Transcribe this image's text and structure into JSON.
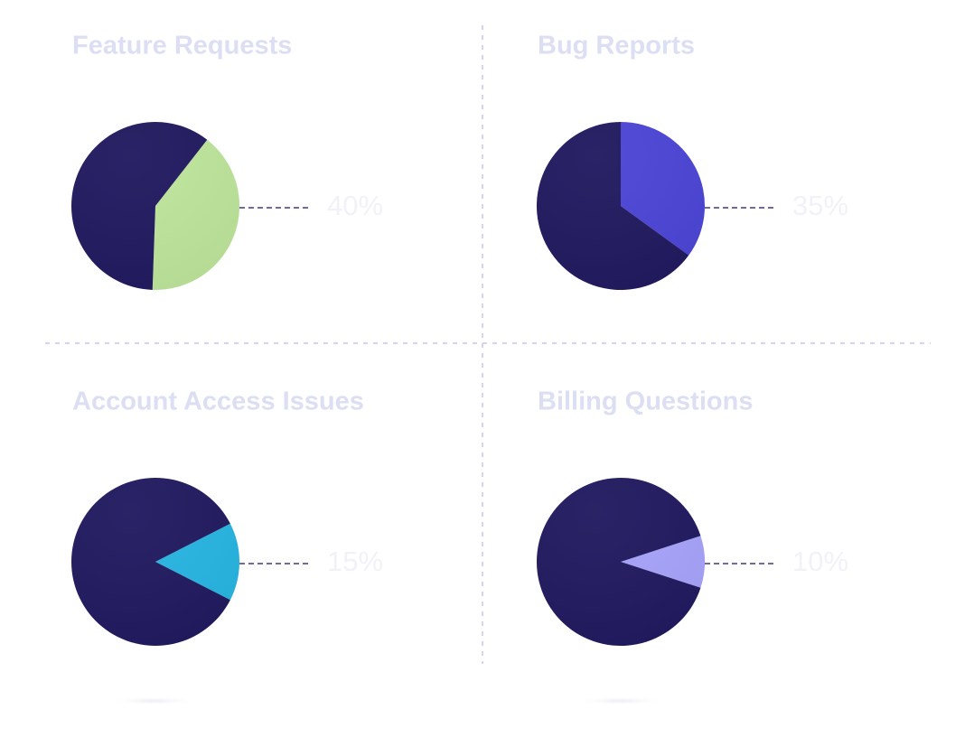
{
  "chart_data": [
    {
      "type": "pie",
      "title": "Feature Requests",
      "values": [
        40,
        60
      ],
      "value_labels": [
        "40%",
        null
      ],
      "colors": [
        "#bde59b",
        "#211a60"
      ]
    },
    {
      "type": "pie",
      "title": "Bug Reports",
      "values": [
        35,
        65
      ],
      "value_labels": [
        "35%",
        null
      ],
      "colors": [
        "#4c45d6",
        "#211a60"
      ]
    },
    {
      "type": "pie",
      "title": "Account Access Issues",
      "values": [
        15,
        85
      ],
      "value_labels": [
        "15%",
        null
      ],
      "colors": [
        "#27b5e2",
        "#211a60"
      ]
    },
    {
      "type": "pie",
      "title": "Billing Questions",
      "values": [
        10,
        90
      ],
      "value_labels": [
        "10%",
        null
      ],
      "colors": [
        "#a7a3fb",
        "#211a60"
      ]
    }
  ]
}
